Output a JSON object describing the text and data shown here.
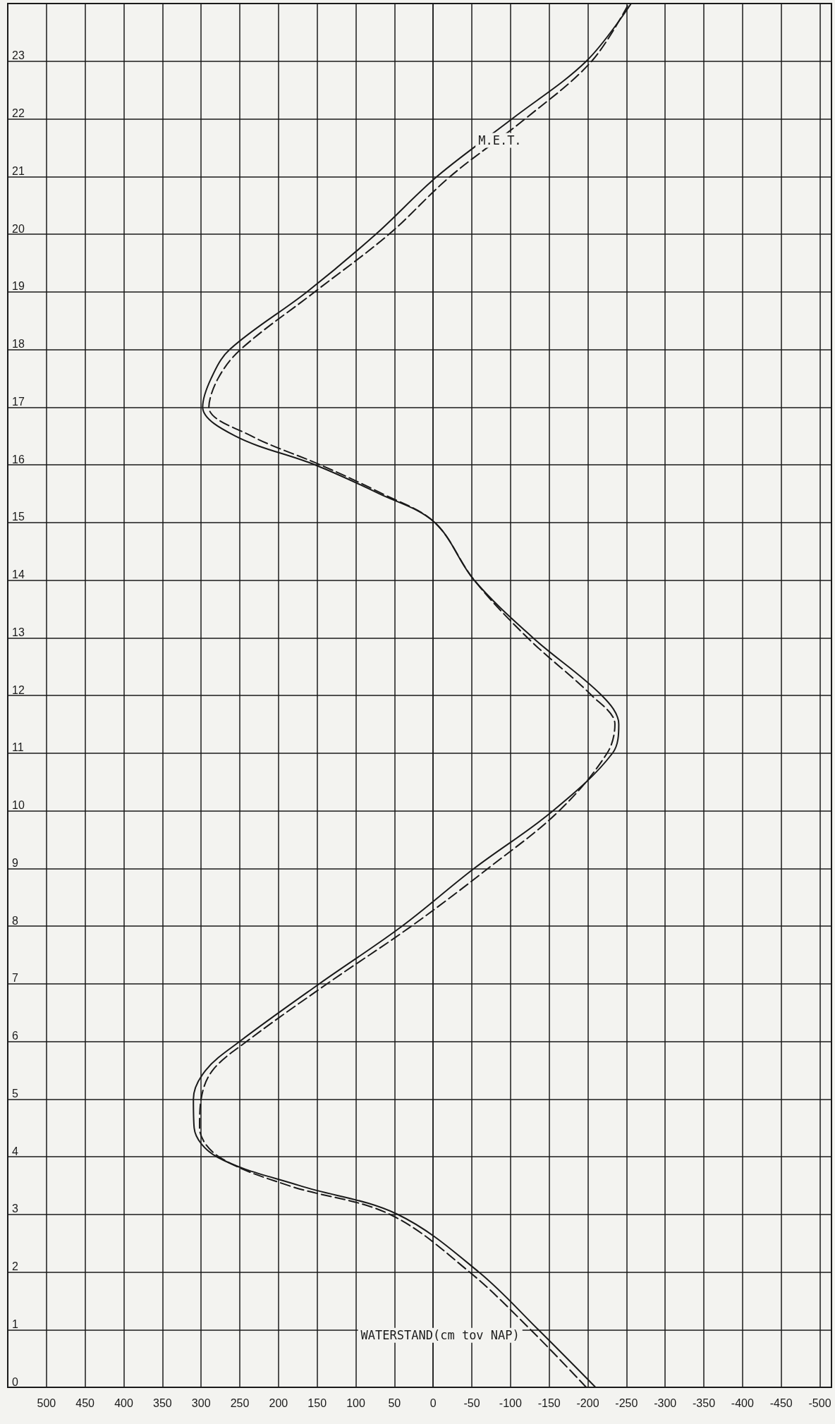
{
  "chart_data": {
    "type": "line",
    "xlabel": "WATERSTAND(cm tov NAP)",
    "ylabel": "M.E.T.",
    "series": [
      {
        "color": "#1a1a1a",
        "line_style": "solid",
        "x": [
          -210,
          -136,
          -59,
          46,
          173,
          280,
          309,
          310,
          294,
          250,
          147,
          40,
          -53,
          -155,
          -232,
          -240,
          -218,
          -129,
          -53,
          -2,
          70,
          153,
          256,
          298,
          287,
          263,
          163,
          74,
          -5,
          -102,
          -198,
          -256
        ],
        "values": [
          0,
          1,
          2,
          3,
          3.5,
          4,
          4.5,
          5,
          5.5,
          6,
          7,
          8,
          9,
          10,
          11,
          11.5,
          12,
          13,
          14,
          15,
          15.5,
          16,
          16.5,
          17,
          17.5,
          18,
          19,
          20,
          21,
          22,
          23,
          24
        ]
      },
      {
        "color": "#1a1a1a",
        "line_style": "dashed",
        "x": [
          -198,
          -126,
          -47,
          56,
          187,
          277,
          302,
          300,
          285,
          241,
          137,
          28,
          -71,
          -163,
          -225,
          -235,
          -205,
          -122,
          -53,
          -2,
          66,
          146,
          235,
          290,
          278,
          249,
          153,
          57,
          -22,
          -119,
          -205,
          -253
        ],
        "values": [
          0,
          1,
          2,
          3,
          3.5,
          4,
          4.5,
          5,
          5.5,
          6,
          7,
          8,
          9,
          10,
          11,
          11.5,
          12,
          13,
          14,
          15,
          15.5,
          16,
          16.5,
          17,
          17.5,
          18,
          19,
          20,
          21,
          22,
          23,
          24
        ]
      }
    ],
    "ylim": [
      0,
      24
    ],
    "yticks": [
      0,
      1,
      2,
      3,
      4,
      5,
      6,
      7,
      8,
      9,
      10,
      11,
      12,
      13,
      14,
      15,
      16,
      17,
      18,
      19,
      20,
      21,
      22,
      23
    ],
    "xlim": [
      550,
      -515
    ],
    "xticks": [
      500,
      450,
      400,
      350,
      300,
      250,
      200,
      150,
      100,
      50,
      0,
      -50,
      -100,
      -150,
      -200,
      -250,
      -300,
      -350,
      -400,
      -450,
      -500
    ],
    "grid": true,
    "marker": "none"
  }
}
